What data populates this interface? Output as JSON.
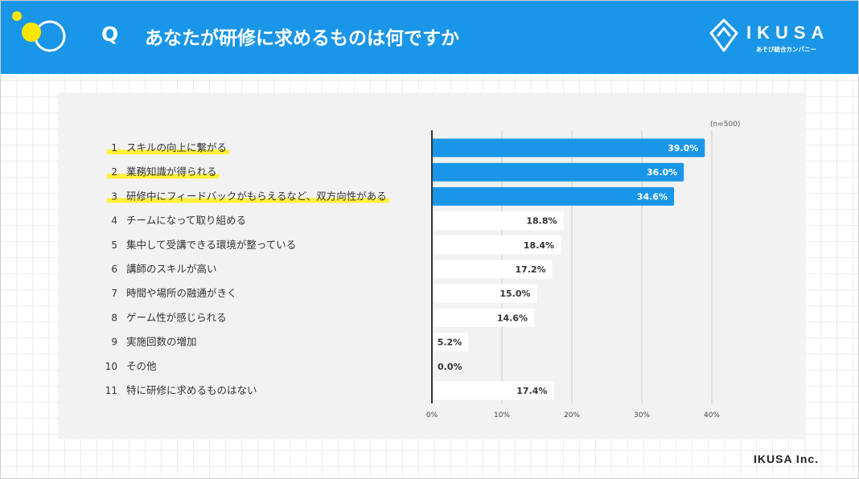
{
  "header": {
    "q_label": "Q",
    "title": "あなたが研修に求めるものは何ですか",
    "brand_name": "IKUSA",
    "brand_tagline": "あそび総合カンパニー"
  },
  "footer": {
    "company": "IKUSA Inc."
  },
  "colors": {
    "header_bg": "#1a96e8",
    "bar_highlight": "#1a96e8",
    "bar_normal": "#ffffff",
    "label_highlight": "#fff03a",
    "logo_yellow": "#ffe600"
  },
  "chart_data": {
    "type": "bar",
    "orientation": "horizontal",
    "note": "(n=500)",
    "categories": [
      "スキルの向上に繋がる",
      "業務知識が得られる",
      "研修中にフィードバックがもらえるなど、双方向性がある",
      "チームになって取り組める",
      "集中して受講できる環境が整っている",
      "講師のスキルが高い",
      "時間や場所の融通がきく",
      "ゲーム性が感じられる",
      "実施回数の増加",
      "その他",
      "特に研修に求めるものはない"
    ],
    "ranks": [
      "1",
      "2",
      "3",
      "4",
      "5",
      "6",
      "7",
      "8",
      "9",
      "10",
      "11"
    ],
    "values": [
      39.0,
      36.0,
      34.6,
      18.8,
      18.4,
      17.2,
      15.0,
      14.6,
      5.2,
      0.0,
      17.4
    ],
    "value_labels": [
      "39.0%",
      "36.0%",
      "34.6%",
      "18.8%",
      "18.4%",
      "17.2%",
      "15.0%",
      "14.6%",
      "5.2%",
      "0.0%",
      "17.4%"
    ],
    "highlighted": [
      true,
      true,
      true,
      false,
      false,
      false,
      false,
      false,
      false,
      false,
      false
    ],
    "xlim": [
      0,
      40
    ],
    "xticks": [
      0,
      10,
      20,
      30,
      40
    ],
    "xtick_labels": [
      "0%",
      "10%",
      "20%",
      "30%",
      "40%"
    ],
    "grid": true
  }
}
